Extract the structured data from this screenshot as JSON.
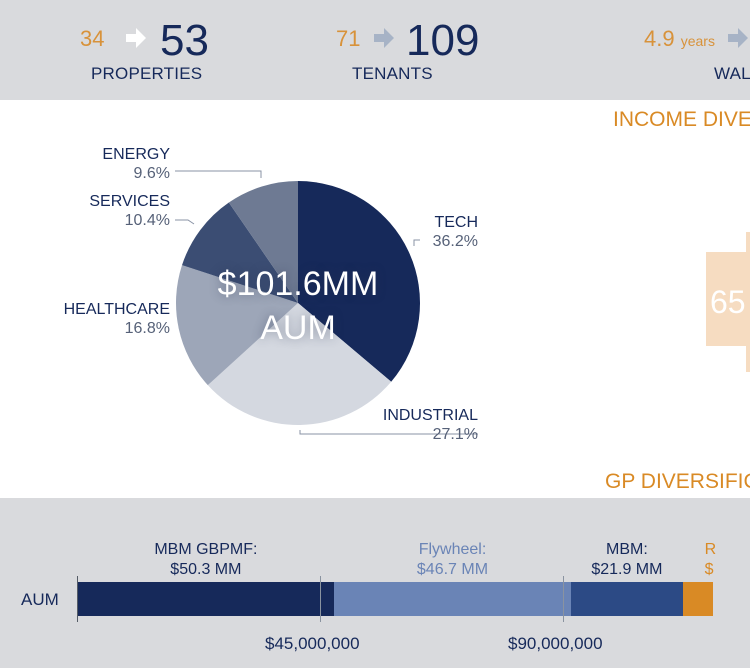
{
  "stats": [
    {
      "before": "34",
      "after": "53",
      "label": "PROPERTIES"
    },
    {
      "before": "71",
      "after": "109",
      "label": "TENANTS"
    },
    {
      "before": "4.9",
      "before_unit": "years",
      "after": "",
      "label": "WAL"
    }
  ],
  "sections": {
    "income_title": "INCOME DIVE",
    "gp_title": "GP DIVERSIFIC"
  },
  "pie": {
    "center_line1": "$101.6MM",
    "center_line2": "AUM"
  },
  "orange_box_value": "65",
  "chart_data": [
    {
      "type": "pie",
      "slices": [
        {
          "label": "TECH",
          "pct_label": "36.2%",
          "value": 36.2,
          "color": "#16295a"
        },
        {
          "label": "INDUSTRIAL",
          "pct_label": "27.1%",
          "value": 27.1,
          "color": "#d4d8e0"
        },
        {
          "label": "HEALTHCARE",
          "pct_label": "16.8%",
          "value": 16.8,
          "color": "#9da6b8"
        },
        {
          "label": "SERVICES",
          "pct_label": "10.4%",
          "value": 10.4,
          "color": "#3b4d73"
        },
        {
          "label": "ENERGY",
          "pct_label": "9.6%",
          "value": 9.6,
          "color": "#6e7a93"
        }
      ]
    },
    {
      "type": "bar",
      "orientation": "horizontal-stacked",
      "category": "AUM",
      "segments": [
        {
          "name_line": "MBM GBPMF:",
          "value_line": "$50.3 MM",
          "value": 50300000,
          "color": "#16295a",
          "label_color": "#16295a"
        },
        {
          "name_line": "Flywheel:",
          "value_line": "$46.7 MM",
          "value": 46700000,
          "color": "#6a84b6",
          "label_color": "#6a84b6"
        },
        {
          "name_line": "MBM:",
          "value_line": "$21.9 MM",
          "value": 21900000,
          "color": "#2c4a85",
          "label_color": "#16295a"
        },
        {
          "name_line": "R",
          "value_line": "$",
          "value": 6000000,
          "color": "#d98a25",
          "label_color": "#d98a25"
        }
      ],
      "ticks": [
        "$45,000,000",
        "$90,000,000"
      ],
      "tick_values": [
        45000000,
        90000000
      ],
      "xlim": [
        0,
        125000000
      ]
    }
  ]
}
